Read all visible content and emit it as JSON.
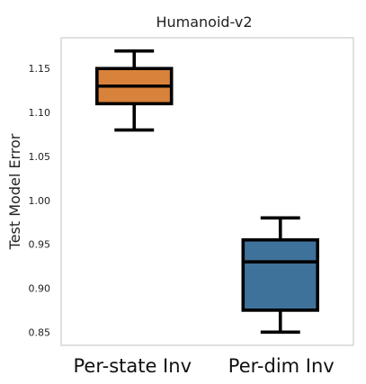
{
  "chart_data": {
    "type": "box",
    "title": "Humanoid-v2",
    "xlabel": "",
    "ylabel": "Test Model Error",
    "ylim": [
      0.835,
      1.185
    ],
    "yticks": [
      "0.85",
      "0.90",
      "0.95",
      "1.00",
      "1.05",
      "1.10",
      "1.15"
    ],
    "grid": false,
    "categories": [
      "Per-state Inv",
      "Per-dim Inv"
    ],
    "boxes": [
      {
        "category": "Per-state Inv",
        "whisker_low": 1.08,
        "q1": 1.11,
        "median": 1.13,
        "q3": 1.15,
        "whisker_high": 1.17,
        "color": "#d9823b"
      },
      {
        "category": "Per-dim Inv",
        "whisker_low": 0.85,
        "q1": 0.875,
        "median": 0.93,
        "q3": 0.955,
        "whisker_high": 0.98,
        "color": "#3f729b"
      }
    ]
  }
}
